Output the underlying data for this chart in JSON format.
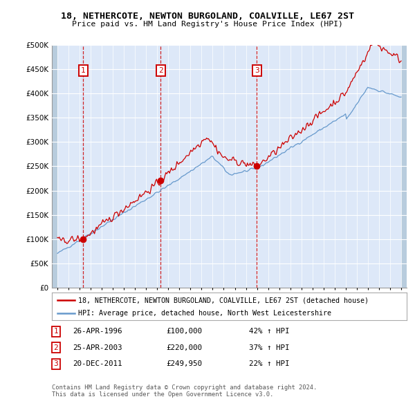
{
  "title": "18, NETHERCOTE, NEWTON BURGOLAND, COALVILLE, LE67 2ST",
  "subtitle": "Price paid vs. HM Land Registry's House Price Index (HPI)",
  "property_label": "18, NETHERCOTE, NEWTON BURGOLAND, COALVILLE, LE67 2ST (detached house)",
  "hpi_label": "HPI: Average price, detached house, North West Leicestershire",
  "sale_color": "#cc0000",
  "hpi_color": "#6699cc",
  "bg_color": "#dde8f8",
  "hatch_color": "#b8ccdd",
  "grid_color": "#ffffff",
  "dashed_line_color": "#cc0000",
  "ylim": [
    0,
    500000
  ],
  "yticks": [
    0,
    50000,
    100000,
    150000,
    200000,
    250000,
    300000,
    350000,
    400000,
    450000,
    500000
  ],
  "xlim_start": 1993.5,
  "xlim_end": 2025.5,
  "sales": [
    {
      "year": 1996.32,
      "price": 100000,
      "label": "1"
    },
    {
      "year": 2003.32,
      "price": 220000,
      "label": "2"
    },
    {
      "year": 2011.97,
      "price": 249950,
      "label": "3"
    }
  ],
  "sale_dashed_lines": [
    1996.32,
    2003.32,
    2011.97
  ],
  "table_entries": [
    {
      "num": "1",
      "date": "26-APR-1996",
      "price": "£100,000",
      "hpi": "42% ↑ HPI"
    },
    {
      "num": "2",
      "date": "25-APR-2003",
      "price": "£220,000",
      "hpi": "37% ↑ HPI"
    },
    {
      "num": "3",
      "date": "20-DEC-2011",
      "price": "£249,950",
      "hpi": "22% ↑ HPI"
    }
  ],
  "footer": "Contains HM Land Registry data © Crown copyright and database right 2024.\nThis data is licensed under the Open Government Licence v3.0."
}
